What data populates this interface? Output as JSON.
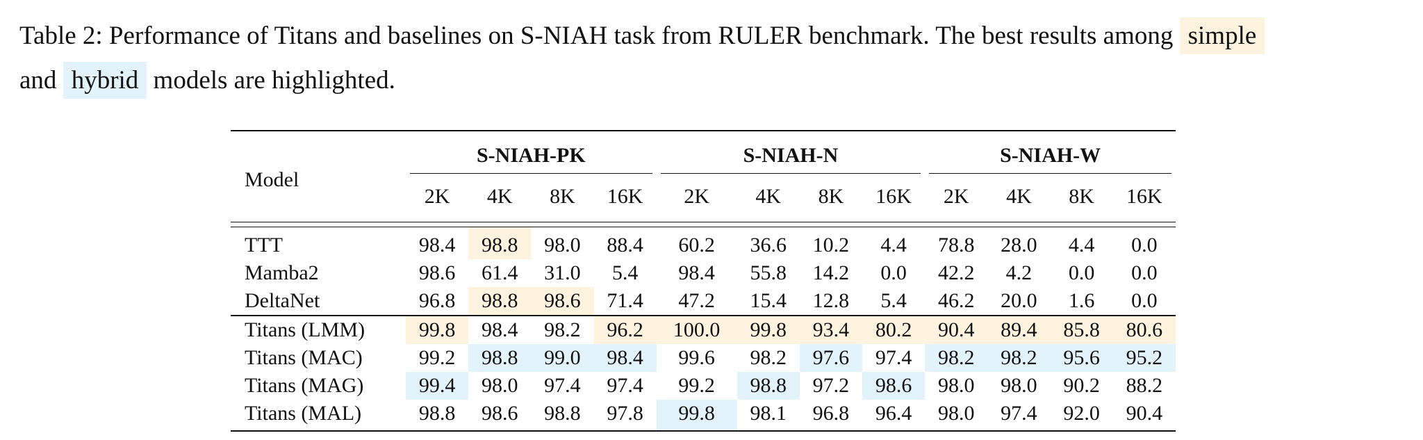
{
  "caption": {
    "part1": "Table 2: Performance of Titans and baselines on S-NIAH task from RULER benchmark. The best results among",
    "simple_word": "simple",
    "part2": "and",
    "hybrid_word": "hybrid",
    "part3": "models are highlighted."
  },
  "colors": {
    "simple_highlight": "#fdf3df",
    "hybrid_highlight": "#e3f3fb"
  },
  "table": {
    "model_header": "Model",
    "groups": [
      "S-NIAH-PK",
      "S-NIAH-N",
      "S-NIAH-W"
    ],
    "columns": [
      "2K",
      "4K",
      "8K",
      "16K",
      "2K",
      "4K",
      "8K",
      "16K",
      "2K",
      "4K",
      "8K",
      "16K"
    ],
    "rows": [
      {
        "model": "TTT",
        "values": [
          "98.4",
          "98.8",
          "98.0",
          "88.4",
          "60.2",
          "36.6",
          "10.2",
          "4.4",
          "78.8",
          "28.0",
          "4.4",
          "0.0"
        ],
        "highlight": [
          "",
          "simple",
          "",
          "",
          "",
          "",
          "",
          "",
          "",
          "",
          "",
          ""
        ]
      },
      {
        "model": "Mamba2",
        "values": [
          "98.6",
          "61.4",
          "31.0",
          "5.4",
          "98.4",
          "55.8",
          "14.2",
          "0.0",
          "42.2",
          "4.2",
          "0.0",
          "0.0"
        ],
        "highlight": [
          "",
          "",
          "",
          "",
          "",
          "",
          "",
          "",
          "",
          "",
          "",
          ""
        ]
      },
      {
        "model": "DeltaNet",
        "values": [
          "96.8",
          "98.8",
          "98.6",
          "71.4",
          "47.2",
          "15.4",
          "12.8",
          "5.4",
          "46.2",
          "20.0",
          "1.6",
          "0.0"
        ],
        "highlight": [
          "",
          "simple",
          "simple",
          "",
          "",
          "",
          "",
          "",
          "",
          "",
          "",
          ""
        ]
      },
      {
        "model": "Titans (LMM)",
        "values": [
          "99.8",
          "98.4",
          "98.2",
          "96.2",
          "100.0",
          "99.8",
          "93.4",
          "80.2",
          "90.4",
          "89.4",
          "85.8",
          "80.6"
        ],
        "highlight": [
          "simple",
          "",
          "",
          "simple",
          "simple",
          "simple",
          "simple",
          "simple",
          "simple",
          "simple",
          "simple",
          "simple"
        ]
      },
      {
        "model": "Titans (MAC)",
        "values": [
          "99.2",
          "98.8",
          "99.0",
          "98.4",
          "99.6",
          "98.2",
          "97.6",
          "97.4",
          "98.2",
          "98.2",
          "95.6",
          "95.2"
        ],
        "highlight": [
          "",
          "hybrid",
          "hybrid",
          "hybrid",
          "",
          "",
          "hybrid",
          "",
          "hybrid",
          "hybrid",
          "hybrid",
          "hybrid"
        ]
      },
      {
        "model": "Titans (MAG)",
        "values": [
          "99.4",
          "98.0",
          "97.4",
          "97.4",
          "99.2",
          "98.8",
          "97.2",
          "98.6",
          "98.0",
          "98.0",
          "90.2",
          "88.2"
        ],
        "highlight": [
          "hybrid",
          "",
          "",
          "",
          "",
          "hybrid",
          "",
          "hybrid",
          "",
          "",
          "",
          ""
        ]
      },
      {
        "model": "Titans (MAL)",
        "values": [
          "98.8",
          "98.6",
          "98.8",
          "97.8",
          "99.8",
          "98.1",
          "96.8",
          "96.4",
          "98.0",
          "97.4",
          "92.0",
          "90.4"
        ],
        "highlight": [
          "",
          "",
          "",
          "",
          "hybrid",
          "",
          "",
          "",
          "",
          "",
          "",
          ""
        ]
      }
    ]
  }
}
